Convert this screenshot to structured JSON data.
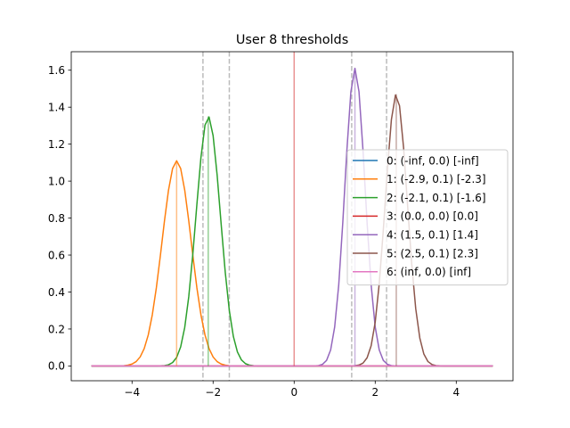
{
  "chart_data": {
    "type": "line",
    "title": "User 8 thresholds",
    "xlabel": "",
    "ylabel": "",
    "xlim": [
      -5.5,
      5.4
    ],
    "ylim": [
      -0.08,
      1.7
    ],
    "xticks": [
      -4,
      -2,
      0,
      2,
      4
    ],
    "xtick_labels": [
      "−4",
      "−2",
      "0",
      "2",
      "4"
    ],
    "yticks": [
      0.0,
      0.2,
      0.4,
      0.6,
      0.8,
      1.0,
      1.2,
      1.4,
      1.6
    ],
    "ytick_labels": [
      "0.0",
      "0.2",
      "0.4",
      "0.6",
      "0.8",
      "1.0",
      "1.2",
      "1.4",
      "1.6"
    ],
    "grid": false,
    "legend_position": "center-right",
    "x_range": [
      -5.0,
      4.9
    ],
    "series": [
      {
        "name": "0: (-inf, 0.0) [-inf]",
        "color": "#1f77b4",
        "mean": null,
        "std": 0.0,
        "peak": 0.0,
        "threshold": null
      },
      {
        "name": "1: (-2.9, 0.1) [-2.3]",
        "color": "#ff7f0e",
        "mean": -2.9,
        "std": 0.36,
        "peak": 1.11,
        "threshold": -2.3
      },
      {
        "name": "2: (-2.1, 0.1) [-1.6]",
        "color": "#2ca02c",
        "mean": -2.12,
        "std": 0.3,
        "peak": 1.35,
        "threshold": -1.6
      },
      {
        "name": "3: (0.0, 0.0) [0.0]",
        "color": "#d62728",
        "mean": 0.0,
        "std": 0.0,
        "peak": 0.0,
        "threshold": 0.0
      },
      {
        "name": "4: (1.5, 0.1) [1.4]",
        "color": "#9467bd",
        "mean": 1.5,
        "std": 0.248,
        "peak": 1.61,
        "threshold": 1.4
      },
      {
        "name": "5: (2.5, 0.1) [2.3]",
        "color": "#8c564b",
        "mean": 2.52,
        "std": 0.272,
        "peak": 1.47,
        "threshold": 2.3
      },
      {
        "name": "6: (inf, 0.0) [inf]",
        "color": "#e377c2",
        "mean": null,
        "std": 0.0,
        "peak": 0.0,
        "threshold": null
      }
    ],
    "dashed_threshold_lines": [
      -2.25,
      -1.6,
      1.42,
      2.28
    ],
    "mean_lines": [
      {
        "x": -2.9,
        "color": "#ff7f0e",
        "top": 1.11
      },
      {
        "x": -2.12,
        "color": "#2ca02c",
        "top": 1.35
      },
      {
        "x": 0.0,
        "color": "#d62728",
        "top": 1.7
      },
      {
        "x": 1.5,
        "color": "#9467bd",
        "top": 1.61
      },
      {
        "x": 2.52,
        "color": "#8c564b",
        "top": 1.47
      }
    ]
  }
}
